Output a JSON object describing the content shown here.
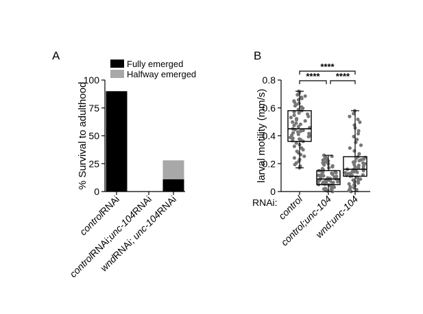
{
  "chart_data": [
    {
      "panel": "A",
      "type": "bar",
      "stacked": true,
      "title": "",
      "ylabel": "% Survival to adulthood",
      "ylim": [
        0,
        100
      ],
      "yticks": [
        0,
        25,
        50,
        75,
        100
      ],
      "categories": [
        {
          "parts": [
            {
              "t": "control",
              "i": true
            },
            {
              "t": "RNAi",
              "i": false
            }
          ]
        },
        {
          "parts": [
            {
              "t": "control",
              "i": true
            },
            {
              "t": "RNAi;",
              "i": false
            },
            {
              "t": "unc-104",
              "i": true
            },
            {
              "t": "RNAi",
              "i": false
            }
          ]
        },
        {
          "parts": [
            {
              "t": "wnd",
              "i": true
            },
            {
              "t": "RNAi; ",
              "i": false
            },
            {
              "t": "unc-104",
              "i": true
            },
            {
              "t": "RNAi",
              "i": false
            }
          ]
        }
      ],
      "series": [
        {
          "name": "Fully emerged",
          "color": "#000000",
          "values": [
            90,
            0,
            11
          ]
        },
        {
          "name": "Halfway emerged",
          "color": "#a8a8a8",
          "values": [
            0,
            0,
            17
          ]
        }
      ],
      "legend": "top"
    },
    {
      "panel": "B",
      "type": "box",
      "title": "",
      "ylabel": "larval motility (mm/s)",
      "xlabel": "RNAi:",
      "ylim": [
        0,
        0.8
      ],
      "yticks": [
        "0",
        "0.2",
        "0.4",
        "0.6",
        "0.8"
      ],
      "categories": [
        {
          "parts": [
            {
              "t": "control",
              "i": true
            }
          ]
        },
        {
          "parts": [
            {
              "t": "control;unc-104",
              "i": true
            }
          ]
        },
        {
          "parts": [
            {
              "t": "wnd;unc-104",
              "i": true
            }
          ]
        }
      ],
      "boxes": [
        {
          "min": 0.17,
          "q1": 0.36,
          "median": 0.45,
          "q3": 0.58,
          "max": 0.72,
          "n": 65
        },
        {
          "min": 0.0,
          "q1": 0.05,
          "median": 0.09,
          "q3": 0.15,
          "max": 0.26,
          "n": 65
        },
        {
          "min": 0.0,
          "q1": 0.11,
          "median": 0.16,
          "q3": 0.25,
          "max": 0.58,
          "n": 65
        }
      ],
      "significance": [
        {
          "from": 0,
          "to": 1,
          "label": "****"
        },
        {
          "from": 1,
          "to": 2,
          "label": "****"
        },
        {
          "from": 0,
          "to": 2,
          "label": "****"
        }
      ]
    }
  ],
  "panels": {
    "a_label": "A",
    "b_label": "B"
  }
}
